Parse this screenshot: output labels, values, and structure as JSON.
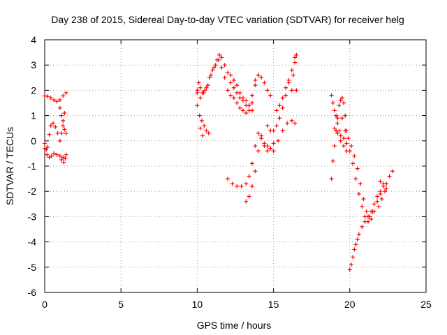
{
  "chart_data": {
    "type": "scatter",
    "title": "Day 238 of 2015, Sidereal Day-to-day VTEC variation (SDTVAR) for receiver helg",
    "xlabel": "GPS time / hours",
    "ylabel": "SDTVAR / TECUs",
    "xlim": [
      0,
      25
    ],
    "ylim": [
      -6,
      4
    ],
    "xticks": [
      0,
      5,
      10,
      15,
      20,
      25
    ],
    "yticks": [
      -6,
      -5,
      -4,
      -3,
      -2,
      -1,
      0,
      1,
      2,
      3,
      4
    ],
    "grid": true,
    "marker": "+",
    "color": "#ff0000",
    "series": [
      {
        "points": [
          [
            0.0,
            1.78
          ],
          [
            0.2,
            1.76
          ],
          [
            0.4,
            1.7
          ],
          [
            0.6,
            1.62
          ],
          [
            0.8,
            1.56
          ],
          [
            1.0,
            1.62
          ],
          [
            1.2,
            1.78
          ],
          [
            1.4,
            1.9
          ],
          [
            0.0,
            -0.1
          ],
          [
            0.1,
            -0.35
          ],
          [
            0.2,
            -0.25
          ],
          [
            0.3,
            0.25
          ],
          [
            0.4,
            0.6
          ],
          [
            0.55,
            0.7
          ],
          [
            0.7,
            0.55
          ],
          [
            0.85,
            0.3
          ],
          [
            0.0,
            -0.3
          ],
          [
            0.15,
            -0.55
          ],
          [
            0.3,
            -0.65
          ],
          [
            0.45,
            -0.6
          ],
          [
            0.6,
            -0.5
          ],
          [
            0.8,
            -0.55
          ],
          [
            1.0,
            -0.6
          ],
          [
            1.2,
            -0.65
          ],
          [
            1.4,
            -0.55
          ],
          [
            1.0,
            0.0
          ],
          [
            1.1,
            0.3
          ],
          [
            1.2,
            0.6
          ],
          [
            1.3,
            0.45
          ],
          [
            1.4,
            0.3
          ],
          [
            1.1,
            -0.75
          ],
          [
            1.25,
            -0.85
          ],
          [
            1.35,
            -0.7
          ],
          [
            1.0,
            1.3
          ],
          [
            1.1,
            1.0
          ],
          [
            1.2,
            0.8
          ],
          [
            1.3,
            1.1
          ],
          [
            10.0,
            2.0
          ],
          [
            10.1,
            2.3
          ],
          [
            10.2,
            2.1
          ],
          [
            10.35,
            1.9
          ],
          [
            10.5,
            2.0
          ],
          [
            10.7,
            2.2
          ],
          [
            10.9,
            2.6
          ],
          [
            11.1,
            2.9
          ],
          [
            11.3,
            3.2
          ],
          [
            11.45,
            3.4
          ],
          [
            11.6,
            3.3
          ],
          [
            11.8,
            3.0
          ],
          [
            12.0,
            2.7
          ],
          [
            12.2,
            2.3
          ],
          [
            12.4,
            2.1
          ],
          [
            12.6,
            1.9
          ],
          [
            12.8,
            1.7
          ],
          [
            13.0,
            1.6
          ],
          [
            13.2,
            1.4
          ],
          [
            13.4,
            1.2
          ],
          [
            13.6,
            1.5
          ],
          [
            13.8,
            2.2
          ],
          [
            14.0,
            2.6
          ],
          [
            14.2,
            2.5
          ],
          [
            14.4,
            2.3
          ],
          [
            14.6,
            2.0
          ],
          [
            14.8,
            1.8
          ],
          [
            10.0,
            1.9
          ],
          [
            10.2,
            1.7
          ],
          [
            10.4,
            1.9
          ],
          [
            10.6,
            2.1
          ],
          [
            10.8,
            2.5
          ],
          [
            11.0,
            2.8
          ],
          [
            11.2,
            3.0
          ],
          [
            11.4,
            3.2
          ],
          [
            11.6,
            2.9
          ],
          [
            11.8,
            2.5
          ],
          [
            12.0,
            2.0
          ],
          [
            12.2,
            1.8
          ],
          [
            12.4,
            1.7
          ],
          [
            12.6,
            1.5
          ],
          [
            12.8,
            1.3
          ],
          [
            13.0,
            1.2
          ],
          [
            13.2,
            1.1
          ],
          [
            13.4,
            1.4
          ],
          [
            13.6,
            1.8
          ],
          [
            13.8,
            2.4
          ],
          [
            14.0,
            2.6
          ],
          [
            12.2,
            2.6
          ],
          [
            12.4,
            2.4
          ],
          [
            12.6,
            2.2
          ],
          [
            12.8,
            1.9
          ],
          [
            13.0,
            1.7
          ],
          [
            13.2,
            1.6
          ],
          [
            13.4,
            1.4
          ],
          [
            13.6,
            1.2
          ],
          [
            10.0,
            1.4
          ],
          [
            10.15,
            1.0
          ],
          [
            10.3,
            0.8
          ],
          [
            10.45,
            0.6
          ],
          [
            10.6,
            0.4
          ],
          [
            10.75,
            0.3
          ],
          [
            10.2,
            0.5
          ],
          [
            10.35,
            0.2
          ],
          [
            12.0,
            -1.5
          ],
          [
            12.3,
            -1.7
          ],
          [
            12.6,
            -1.8
          ],
          [
            12.9,
            -1.8
          ],
          [
            13.2,
            -1.7
          ],
          [
            13.4,
            -1.4
          ],
          [
            13.6,
            -0.9
          ],
          [
            13.8,
            -0.2
          ],
          [
            14.0,
            0.3
          ],
          [
            14.2,
            0.2
          ],
          [
            14.4,
            -0.1
          ],
          [
            14.6,
            -0.2
          ],
          [
            14.8,
            -0.3
          ],
          [
            15.0,
            -0.4
          ],
          [
            15.3,
            0.0
          ],
          [
            15.6,
            0.4
          ],
          [
            15.9,
            0.7
          ],
          [
            16.2,
            0.8
          ],
          [
            16.4,
            0.7
          ],
          [
            13.2,
            -2.4
          ],
          [
            13.4,
            -2.2
          ],
          [
            13.6,
            -1.8
          ],
          [
            13.8,
            -1.2
          ],
          [
            14.0,
            -0.4
          ],
          [
            14.2,
            0.1
          ],
          [
            14.4,
            -0.2
          ],
          [
            14.6,
            -0.4
          ],
          [
            14.8,
            -0.3
          ],
          [
            15.0,
            -0.1
          ],
          [
            14.6,
            0.6
          ],
          [
            14.8,
            0.4
          ],
          [
            15.0,
            0.4
          ],
          [
            15.2,
            0.6
          ],
          [
            15.4,
            0.9
          ],
          [
            15.6,
            1.3
          ],
          [
            15.8,
            1.8
          ],
          [
            16.0,
            2.3
          ],
          [
            16.2,
            2.8
          ],
          [
            16.4,
            3.3
          ],
          [
            16.5,
            3.4
          ],
          [
            16.4,
            3.1
          ],
          [
            16.3,
            2.6
          ],
          [
            16.5,
            2.0
          ],
          [
            15.2,
            1.2
          ],
          [
            15.4,
            1.4
          ],
          [
            15.6,
            1.7
          ],
          [
            15.8,
            2.1
          ],
          [
            16.0,
            2.4
          ],
          [
            16.2,
            2.0
          ],
          [
            18.8,
            1.8
          ],
          [
            18.9,
            1.5
          ],
          [
            19.0,
            1.2
          ],
          [
            19.1,
            1.0
          ],
          [
            19.2,
            0.7
          ],
          [
            19.3,
            0.4
          ],
          [
            19.4,
            0.2
          ],
          [
            19.6,
            0.1
          ],
          [
            19.8,
            -0.1
          ],
          [
            20.0,
            -0.4
          ],
          [
            20.2,
            -0.9
          ],
          [
            20.4,
            -1.5
          ],
          [
            20.6,
            -2.1
          ],
          [
            20.8,
            -2.6
          ],
          [
            21.0,
            -3.0
          ],
          [
            21.2,
            -3.2
          ],
          [
            21.4,
            -3.1
          ],
          [
            21.6,
            -2.8
          ],
          [
            21.8,
            -2.4
          ],
          [
            22.0,
            -2.1
          ],
          [
            22.2,
            -1.8
          ],
          [
            22.4,
            -1.7
          ],
          [
            22.6,
            -1.4
          ],
          [
            22.8,
            -1.2
          ],
          [
            18.8,
            -1.5
          ],
          [
            18.9,
            -0.8
          ],
          [
            19.0,
            -0.2
          ],
          [
            19.1,
            0.4
          ],
          [
            19.2,
            0.9
          ],
          [
            19.3,
            1.4
          ],
          [
            19.4,
            1.6
          ],
          [
            19.5,
            1.7
          ],
          [
            19.6,
            1.5
          ],
          [
            19.7,
            1.0
          ],
          [
            19.8,
            0.4
          ],
          [
            19.0,
            0.5
          ],
          [
            19.2,
            0.3
          ],
          [
            19.4,
            0.0
          ],
          [
            19.6,
            -0.2
          ],
          [
            19.8,
            -0.4
          ],
          [
            19.5,
            0.9
          ],
          [
            19.7,
            0.4
          ],
          [
            19.9,
            0.1
          ],
          [
            20.1,
            -0.2
          ],
          [
            20.3,
            -0.6
          ],
          [
            20.5,
            -1.1
          ],
          [
            20.7,
            -1.7
          ],
          [
            20.9,
            -2.3
          ],
          [
            21.1,
            -2.8
          ],
          [
            21.3,
            -3.0
          ],
          [
            21.5,
            -2.8
          ],
          [
            20.0,
            -5.1
          ],
          [
            20.1,
            -4.9
          ],
          [
            20.2,
            -4.6
          ],
          [
            20.3,
            -4.3
          ],
          [
            20.4,
            -4.1
          ],
          [
            20.5,
            -3.9
          ],
          [
            20.6,
            -3.7
          ],
          [
            20.8,
            -3.4
          ],
          [
            21.0,
            -3.2
          ],
          [
            21.2,
            -3.0
          ],
          [
            21.4,
            -2.8
          ],
          [
            21.6,
            -2.5
          ],
          [
            21.8,
            -2.2
          ],
          [
            22.0,
            -2.0
          ],
          [
            22.0,
            -1.6
          ],
          [
            22.2,
            -1.7
          ],
          [
            22.4,
            -1.9
          ],
          [
            21.9,
            -2.6
          ],
          [
            22.1,
            -2.3
          ],
          [
            22.3,
            -2.0
          ]
        ]
      }
    ]
  }
}
